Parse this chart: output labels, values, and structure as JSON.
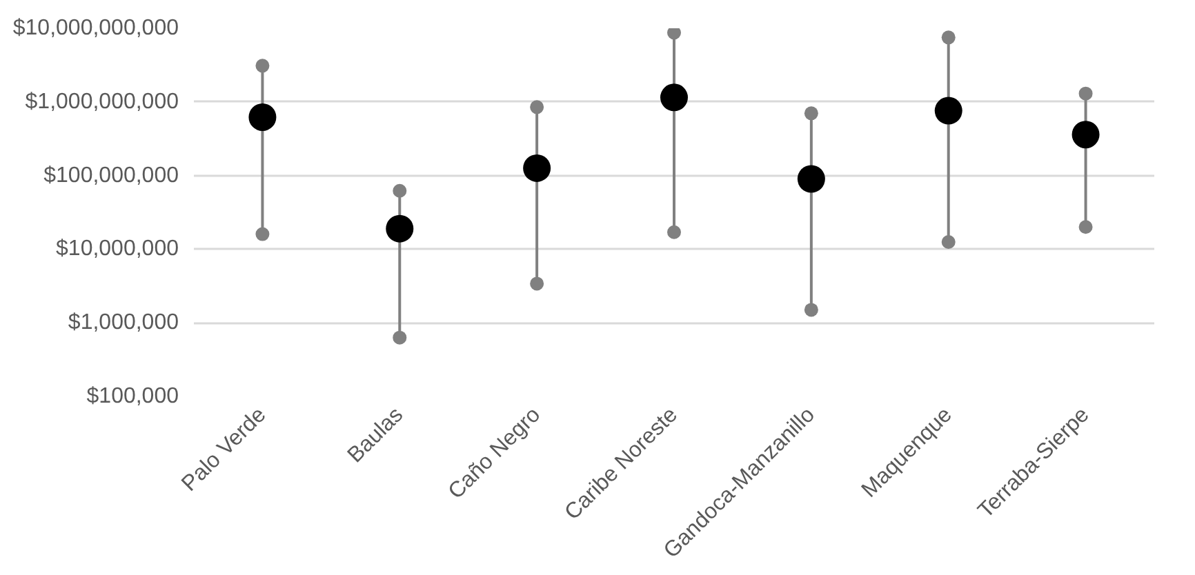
{
  "chart_data": {
    "type": "scatter",
    "categories": [
      "Palo Verde",
      "Baulas",
      "Caño Negro",
      "Caribe Noreste",
      "Gandoca-Manzanillo",
      "Maquenque",
      "Terraba-Sierpe"
    ],
    "series": [
      {
        "color": "#808080",
        "values": [
          3100000000,
          62000000,
          850000000,
          8700000000,
          700000000,
          7500000000,
          1300000000
        ]
      },
      {
        "color": "#808080",
        "values": [
          16000000,
          630000,
          3400000,
          17000000,
          1500000,
          12500000,
          20000000
        ]
      },
      {
        "color": "#000000",
        "values": [
          620000000,
          19000000,
          126000000,
          1150000000,
          90000000,
          760000000,
          360000000
        ]
      }
    ],
    "log": true,
    "ylim": [
      100000,
      10000000000
    ],
    "yticks": [
      {
        "value": 100000,
        "label": "$100,000"
      },
      {
        "value": 1000000,
        "label": "$1,000,000"
      },
      {
        "value": 10000000,
        "label": "$10,000,000"
      },
      {
        "value": 100000000,
        "label": "$100,000,000"
      },
      {
        "value": 1000000000,
        "label": "$1,000,000,000"
      },
      {
        "value": 10000000000,
        "label": "$10,000,000,000"
      }
    ],
    "grid": "y",
    "marker": "circle"
  }
}
